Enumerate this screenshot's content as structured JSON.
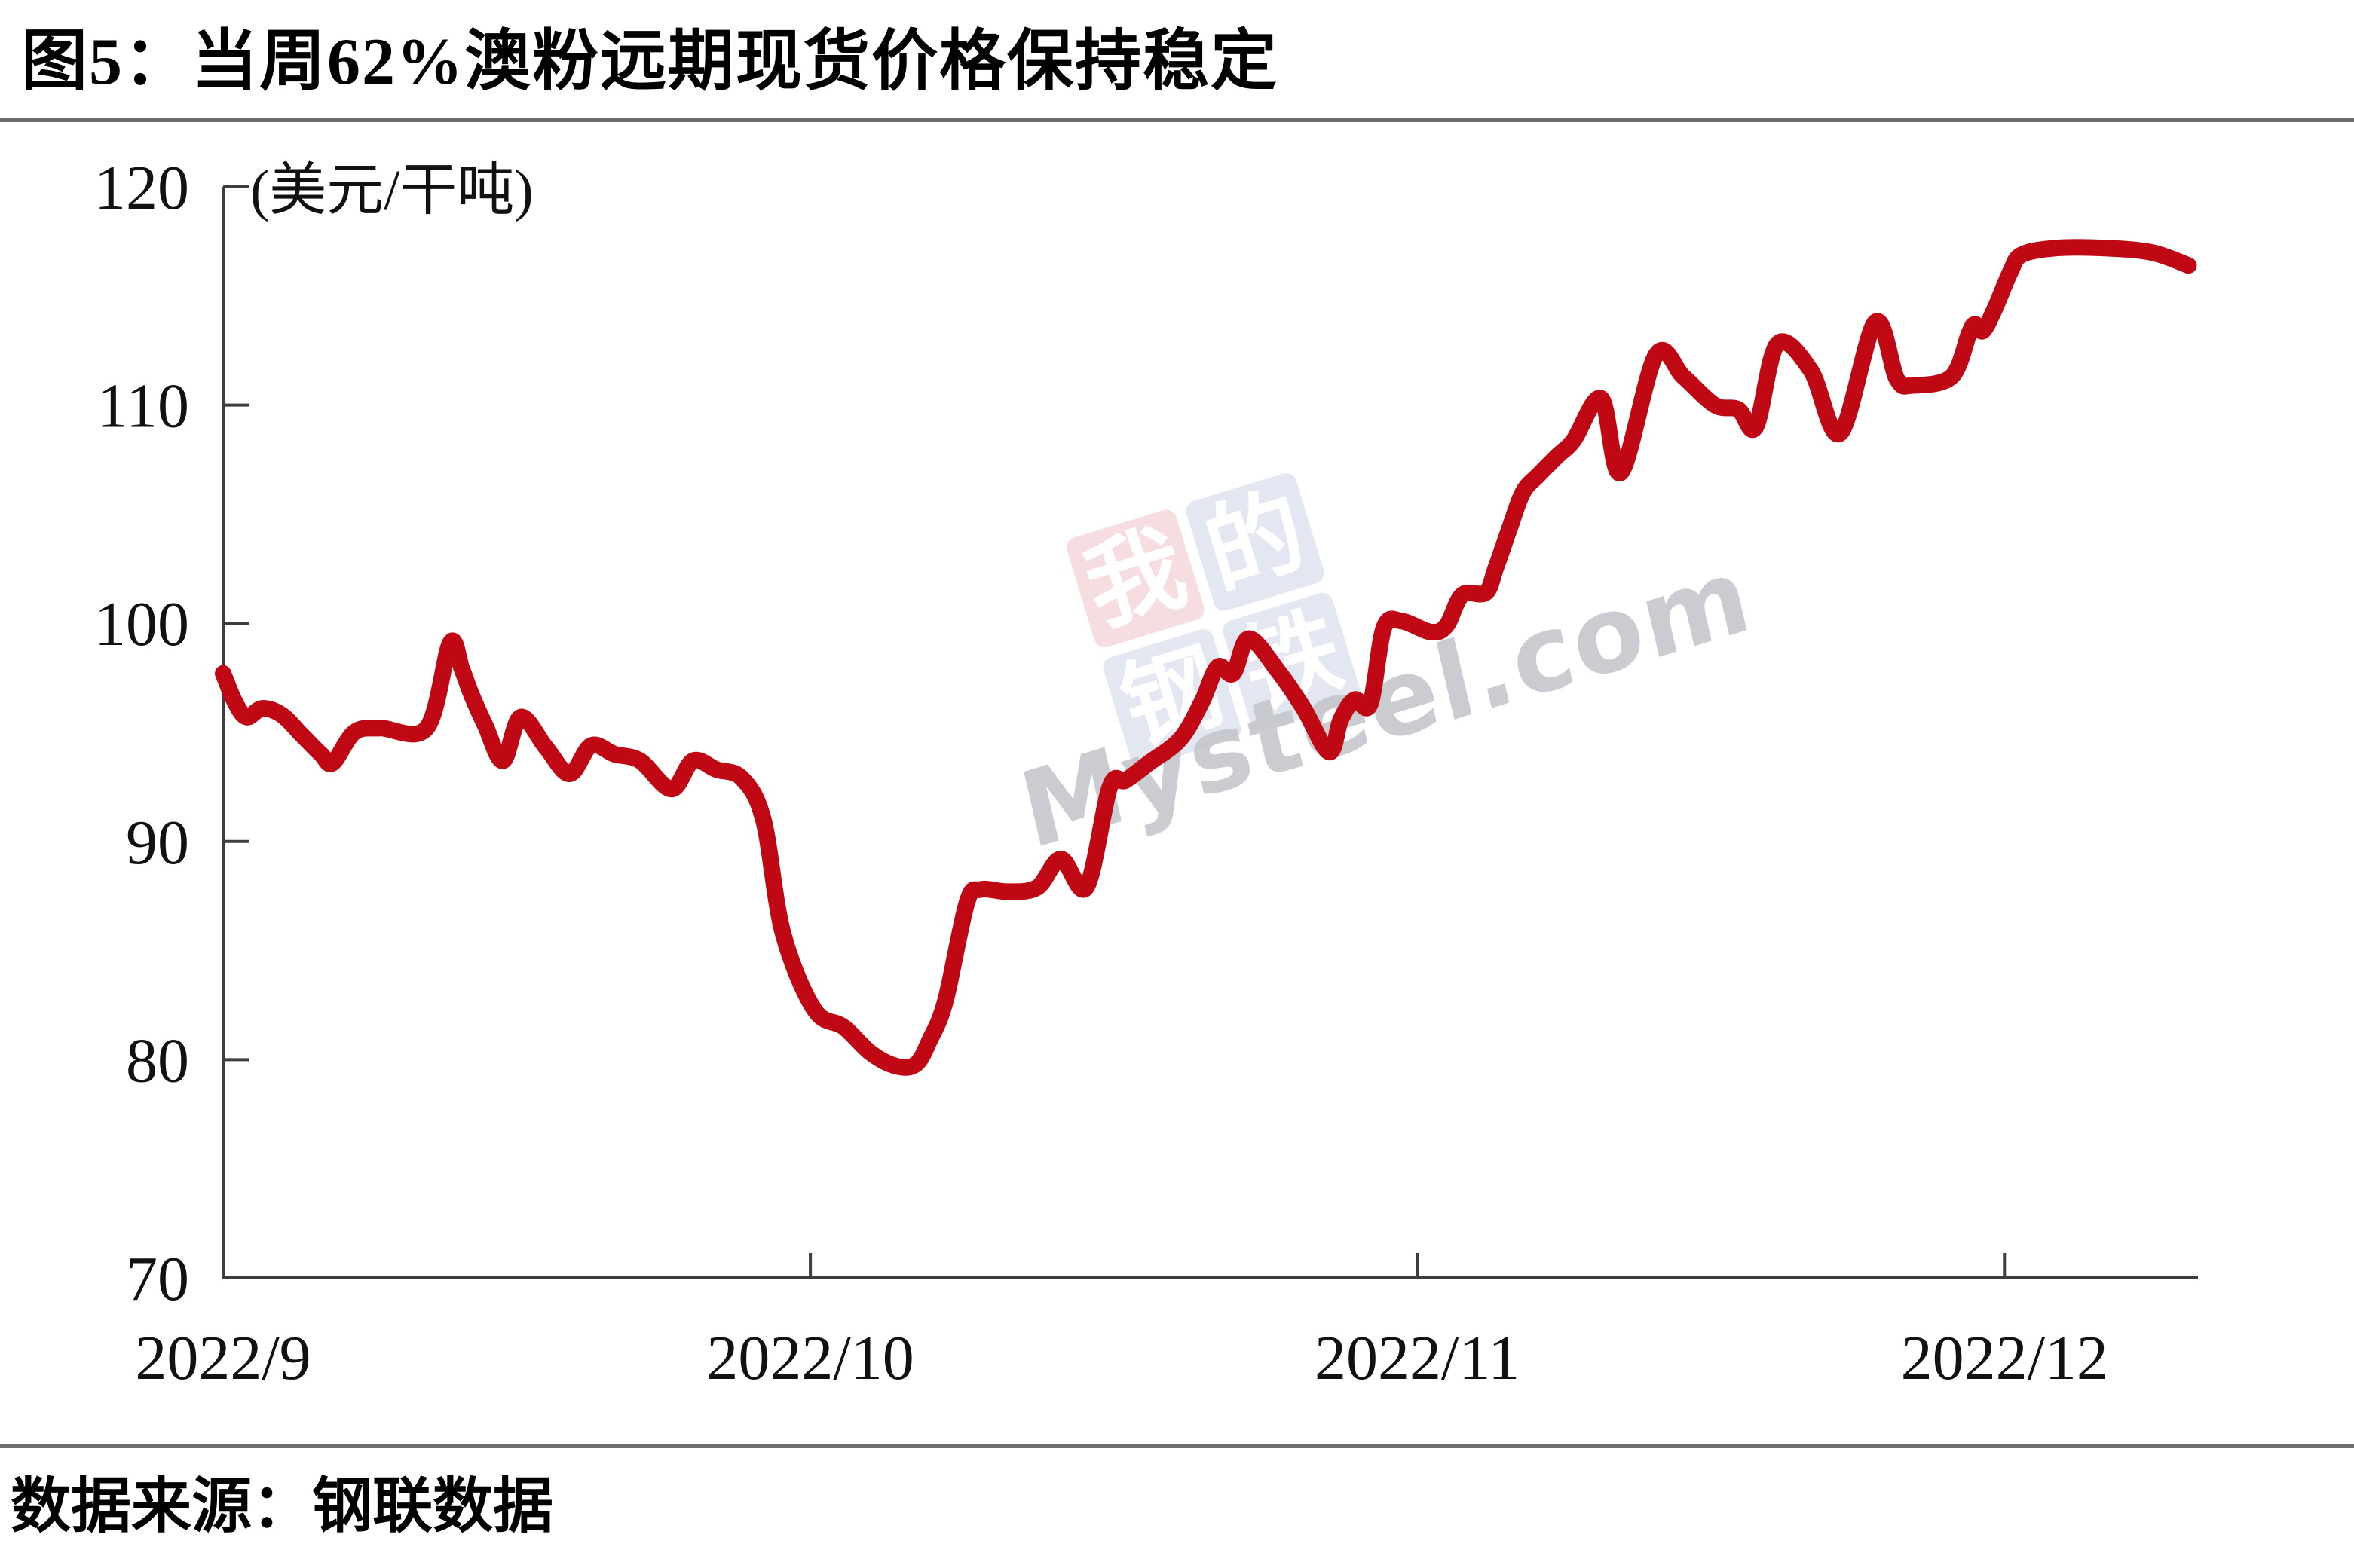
{
  "title": "图5：当周62%澳粉远期现货价格保持稳定",
  "source_note": "数据来源：钢联数据",
  "watermark": {
    "square_chars": [
      "我",
      "的",
      "钢",
      "铁"
    ],
    "brand_text": "Mysteel.com",
    "square_pink": "#f0c3c7",
    "square_blue": "#cdd5e9",
    "brand_gray": "#c3c4c9"
  },
  "colors": {
    "line_red": "#c00814",
    "axis_gray": "#3d3d3d",
    "label_black": "#111111",
    "rule_gray": "#6e6e6e"
  },
  "chart_data": {
    "type": "line",
    "title": "图5：当周62%澳粉远期现货价格保持稳定",
    "unit_label": "(美元/干吨)",
    "xlabel": "",
    "ylabel": "美元/干吨",
    "ylim": [
      70,
      120
    ],
    "yticks": [
      120,
      110,
      100,
      90,
      80,
      70
    ],
    "grid": false,
    "legend": false,
    "x_unit": "days since 2022-09-01",
    "xticks": [
      {
        "label": "2022/9",
        "day": 0,
        "tick_mark": false
      },
      {
        "label": "2022/10",
        "day": 30,
        "tick_mark": true
      },
      {
        "label": "2022/11",
        "day": 61,
        "tick_mark": true
      },
      {
        "label": "2022/12",
        "day": 91,
        "tick_mark": true
      }
    ],
    "series": [
      {
        "name": "62%澳粉远期现货价格",
        "points": [
          [
            0,
            97.7
          ],
          [
            0.6,
            96.4
          ],
          [
            1.2,
            95.7
          ],
          [
            2,
            96.1
          ],
          [
            3,
            95.8
          ],
          [
            4,
            94.9
          ],
          [
            5,
            94.0
          ],
          [
            5.6,
            93.6
          ],
          [
            6.7,
            95.0
          ],
          [
            8,
            95.2
          ],
          [
            10.4,
            95.2
          ],
          [
            11.6,
            99.1
          ],
          [
            12.2,
            97.9
          ],
          [
            12.7,
            96.7
          ],
          [
            13.4,
            95.3
          ],
          [
            14.3,
            93.7
          ],
          [
            15.2,
            95.7
          ],
          [
            16.5,
            94.3
          ],
          [
            17.7,
            93.1
          ],
          [
            18.8,
            94.4
          ],
          [
            20,
            94.0
          ],
          [
            21.3,
            93.7
          ],
          [
            22.9,
            92.4
          ],
          [
            24,
            93.7
          ],
          [
            25.2,
            93.3
          ],
          [
            26.5,
            92.9
          ],
          [
            27.6,
            91.0
          ],
          [
            28.6,
            85.8
          ],
          [
            30.2,
            82.3
          ],
          [
            31.7,
            81.5
          ],
          [
            33.1,
            80.3
          ],
          [
            34.4,
            79.7
          ],
          [
            35.4,
            79.8
          ],
          [
            36.1,
            80.9
          ],
          [
            36.9,
            82.7
          ],
          [
            38,
            87.2
          ],
          [
            38.7,
            87.8
          ],
          [
            40.1,
            87.7
          ],
          [
            41.6,
            87.9
          ],
          [
            42.8,
            89.2
          ],
          [
            44.1,
            87.9
          ],
          [
            45.3,
            92.5
          ],
          [
            46.1,
            92.8
          ],
          [
            47.3,
            93.6
          ],
          [
            48.9,
            94.7
          ],
          [
            50,
            96.4
          ],
          [
            50.8,
            98.0
          ],
          [
            51.6,
            97.7
          ],
          [
            52.4,
            99.3
          ],
          [
            53.9,
            97.8
          ],
          [
            55.2,
            96.1
          ],
          [
            56.5,
            94.1
          ],
          [
            57.1,
            95.6
          ],
          [
            57.8,
            96.5
          ],
          [
            58.6,
            96.3
          ],
          [
            59.3,
            99.8
          ],
          [
            60.2,
            100.1
          ],
          [
            61.7,
            99.6
          ],
          [
            62.5,
            99.9
          ],
          [
            63.3,
            101.3
          ],
          [
            64.5,
            101.4
          ],
          [
            65,
            102.5
          ],
          [
            65.7,
            104.3
          ],
          [
            66.4,
            106.0
          ],
          [
            67.2,
            106.8
          ],
          [
            68.2,
            107.7
          ],
          [
            69,
            108.4
          ],
          [
            70.4,
            110.3
          ],
          [
            71.4,
            106.9
          ],
          [
            73.2,
            112.3
          ],
          [
            74.6,
            111.3
          ],
          [
            76.2,
            110.0
          ],
          [
            77.4,
            109.8
          ],
          [
            78.3,
            109.0
          ],
          [
            79.4,
            112.8
          ],
          [
            81.1,
            111.6
          ],
          [
            82.6,
            108.7
          ],
          [
            84.4,
            113.8
          ],
          [
            85.5,
            111.2
          ],
          [
            86.3,
            110.9
          ],
          [
            88.3,
            111.3
          ],
          [
            89.2,
            113.3
          ],
          [
            89.5,
            113.7
          ],
          [
            89.9,
            113.4
          ],
          [
            90.5,
            114.4
          ],
          [
            91.3,
            116.1
          ],
          [
            91.9,
            116.9
          ],
          [
            93.7,
            117.2
          ],
          [
            96,
            117.2
          ],
          [
            98.5,
            117.0
          ],
          [
            100.4,
            116.4
          ]
        ]
      }
    ]
  }
}
